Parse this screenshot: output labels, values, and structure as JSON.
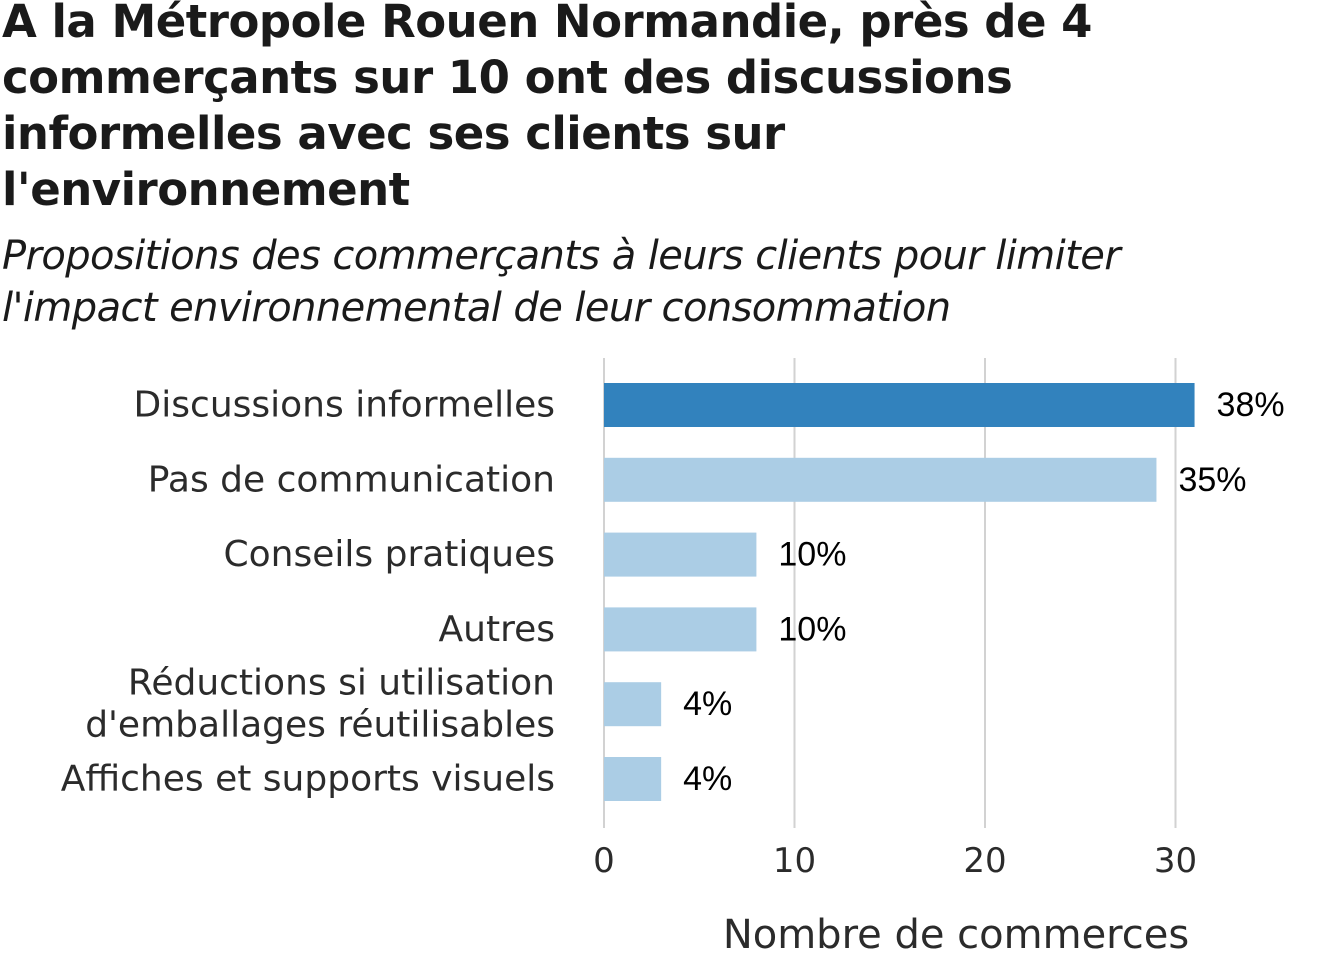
{
  "title": "A la Métropole Rouen Normandie, près de 4 commerçants sur 10 ont des discussions informelles avec ses clients sur l'environnement",
  "subtitle": "Propositions des commerçants à leurs clients pour limiter l'impact environnemental de leur consommation",
  "colors": {
    "highlight": "#3282bd",
    "default": "#abcde5",
    "grid": "#d2d2d2",
    "background": "#ffffff"
  },
  "chart_data": {
    "type": "bar",
    "orientation": "horizontal",
    "categories": [
      [
        "Discussions informelles"
      ],
      [
        "Pas de communication"
      ],
      [
        "Conseils pratiques"
      ],
      [
        "Autres"
      ],
      [
        "Réductions si utilisation",
        "d'emballages réutilisables"
      ],
      [
        "Affiches et supports visuels"
      ]
    ],
    "values": [
      31,
      29,
      8,
      8,
      3,
      3
    ],
    "labels": [
      "38%",
      "35%",
      "10%",
      "10%",
      "4%",
      "4%"
    ],
    "highlighted": [
      true,
      false,
      false,
      false,
      false,
      false
    ],
    "xlabel": "Nombre de commerces",
    "ylabel": "",
    "xlim": [
      0,
      37
    ],
    "xticks": [
      0,
      10,
      20,
      30
    ],
    "grid": "vertical"
  }
}
